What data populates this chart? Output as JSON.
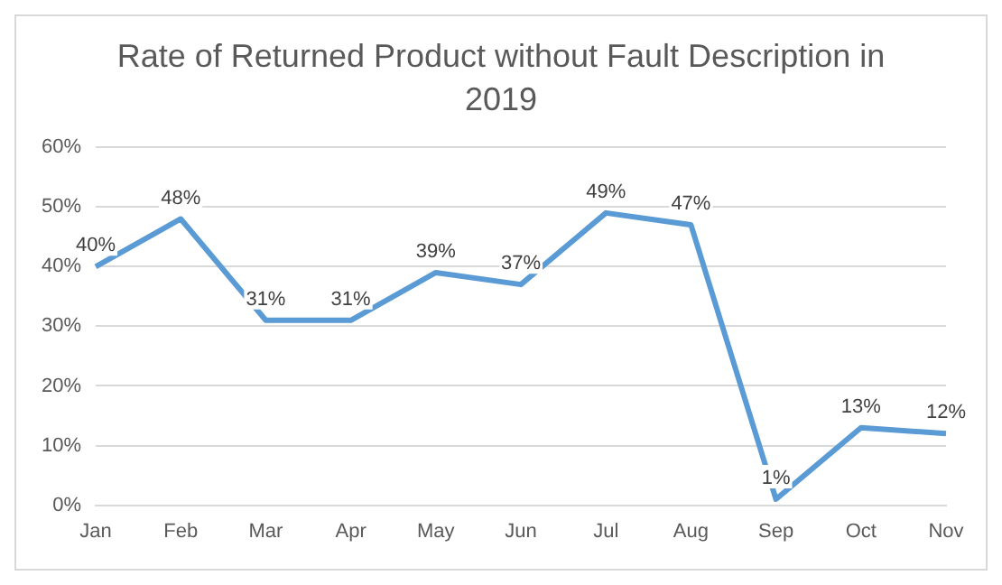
{
  "chart_data": {
    "type": "line",
    "title": "Rate of Returned Product without Fault Description in 2019",
    "categories": [
      "Jan",
      "Feb",
      "Mar",
      "Apr",
      "May",
      "Jun",
      "Jul",
      "Aug",
      "Sep",
      "Oct",
      "Nov"
    ],
    "series": [
      {
        "color": "#5b9bd5",
        "values": [
          40,
          48,
          31,
          31,
          39,
          37,
          49,
          47,
          1,
          13,
          12
        ],
        "value_labels": [
          "40%",
          "48%",
          "31%",
          "31%",
          "39%",
          "37%",
          "49%",
          "47%",
          "1%",
          "13%",
          "12%"
        ]
      }
    ],
    "ylim": [
      0,
      60
    ],
    "yticks": [
      {
        "value": 0,
        "label": "0%"
      },
      {
        "value": 10,
        "label": "10%"
      },
      {
        "value": 20,
        "label": "20%"
      },
      {
        "value": 30,
        "label": "30%"
      },
      {
        "value": 40,
        "label": "40%"
      },
      {
        "value": 50,
        "label": "50%"
      },
      {
        "value": 60,
        "label": "60%"
      }
    ],
    "grid": "y",
    "legend": false,
    "marker": "none",
    "line_style": "solid"
  }
}
